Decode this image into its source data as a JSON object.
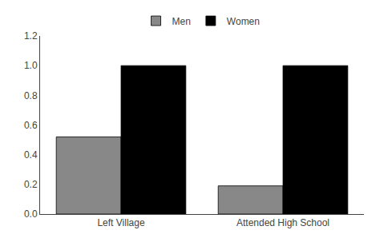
{
  "chart_data": {
    "type": "bar",
    "categories": [
      "Left Village",
      "Attended High School"
    ],
    "series": [
      {
        "name": "Men",
        "color": "#888888",
        "values": [
          0.52,
          0.19
        ]
      },
      {
        "name": "Women",
        "color": "#000000",
        "values": [
          1.0,
          1.0
        ]
      }
    ],
    "ylim": [
      0,
      1.2
    ],
    "yticks": [
      {
        "value": 0.0,
        "label": "0.0"
      },
      0.2,
      0.4,
      0.6,
      0.8,
      {
        "value": 1.0,
        "label": "1.0"
      },
      1.2
    ],
    "grid": false,
    "legend": "upper center"
  }
}
